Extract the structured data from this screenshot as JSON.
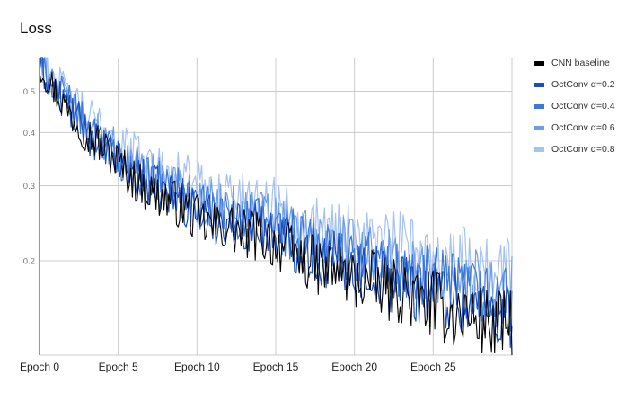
{
  "chart_data": {
    "type": "line",
    "title": "Loss",
    "xlabel": "",
    "ylabel": "",
    "x_ticks": [
      {
        "value": 0,
        "label": "Epoch 0"
      },
      {
        "value": 5,
        "label": "Epoch 5"
      },
      {
        "value": 10,
        "label": "Epoch 10"
      },
      {
        "value": 15,
        "label": "Epoch 15"
      },
      {
        "value": 20,
        "label": "Epoch 20"
      },
      {
        "value": 25,
        "label": "Epoch 25"
      }
    ],
    "y_ticks": [
      {
        "value": 0.2,
        "label": "0.2"
      },
      {
        "value": 0.3,
        "label": "0.3"
      },
      {
        "value": 0.4,
        "label": "0.4"
      },
      {
        "value": 0.5,
        "label": "0.5"
      }
    ],
    "xlim": [
      0,
      30
    ],
    "ylim": [
      0.12,
      0.6
    ],
    "y_scale": "log",
    "grid": true,
    "legend_position": "right",
    "series": [
      {
        "name": "CNN baseline",
        "color": "#000000",
        "values": [
          0.58,
          0.5,
          0.44,
          0.4,
          0.37,
          0.34,
          0.31,
          0.29,
          0.28,
          0.27,
          0.25,
          0.24,
          0.24,
          0.23,
          0.23,
          0.22,
          0.21,
          0.2,
          0.19,
          0.19,
          0.18,
          0.18,
          0.17,
          0.17,
          0.16,
          0.16,
          0.15,
          0.15,
          0.145,
          0.14,
          0.14
        ]
      },
      {
        "name": "OctConv α=0.2",
        "color": "#1a4fba",
        "values": [
          0.57,
          0.5,
          0.45,
          0.4,
          0.37,
          0.34,
          0.32,
          0.3,
          0.29,
          0.28,
          0.26,
          0.25,
          0.25,
          0.24,
          0.24,
          0.23,
          0.22,
          0.21,
          0.2,
          0.2,
          0.19,
          0.19,
          0.18,
          0.18,
          0.17,
          0.17,
          0.165,
          0.16,
          0.155,
          0.15,
          0.15
        ]
      },
      {
        "name": "OctConv α=0.4",
        "color": "#3c78d8",
        "values": [
          0.57,
          0.51,
          0.46,
          0.41,
          0.38,
          0.35,
          0.33,
          0.31,
          0.3,
          0.29,
          0.27,
          0.26,
          0.26,
          0.25,
          0.25,
          0.24,
          0.23,
          0.22,
          0.21,
          0.21,
          0.2,
          0.2,
          0.19,
          0.19,
          0.18,
          0.18,
          0.175,
          0.17,
          0.165,
          0.16,
          0.16
        ]
      },
      {
        "name": "OctConv α=0.6",
        "color": "#6d9eeb",
        "values": [
          0.58,
          0.52,
          0.47,
          0.42,
          0.39,
          0.36,
          0.34,
          0.32,
          0.31,
          0.3,
          0.28,
          0.27,
          0.27,
          0.26,
          0.26,
          0.25,
          0.24,
          0.23,
          0.22,
          0.22,
          0.21,
          0.21,
          0.2,
          0.2,
          0.19,
          0.19,
          0.185,
          0.18,
          0.175,
          0.17,
          0.17
        ]
      },
      {
        "name": "OctConv α=0.8",
        "color": "#a4c2f4",
        "values": [
          0.59,
          0.53,
          0.48,
          0.44,
          0.41,
          0.38,
          0.36,
          0.34,
          0.33,
          0.32,
          0.3,
          0.29,
          0.29,
          0.28,
          0.28,
          0.27,
          0.26,
          0.25,
          0.24,
          0.24,
          0.23,
          0.23,
          0.22,
          0.22,
          0.21,
          0.21,
          0.2,
          0.2,
          0.195,
          0.19,
          0.19
        ]
      }
    ]
  }
}
